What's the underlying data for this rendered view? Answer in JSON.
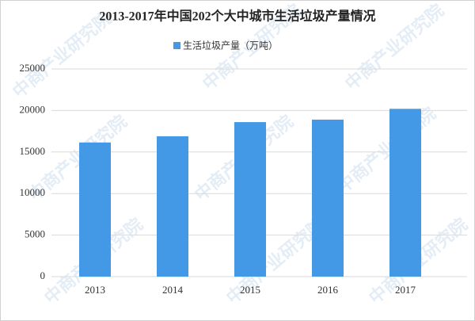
{
  "chart_data": {
    "type": "bar",
    "title": "2013-2017年中国202个大中城市生活垃圾产量情况",
    "watermark": "中商产业研究院",
    "categories": [
      "2013",
      "2014",
      "2015",
      "2016",
      "2017"
    ],
    "series": [
      {
        "name": "生活垃圾产量（万吨）",
        "color": "#4499e6",
        "values": [
          16150,
          16900,
          18600,
          18900,
          20200
        ]
      }
    ],
    "ylim": [
      0,
      25000
    ],
    "yticks": [
      0,
      5000,
      10000,
      15000,
      20000,
      25000
    ],
    "grid": true,
    "legend": "top"
  }
}
